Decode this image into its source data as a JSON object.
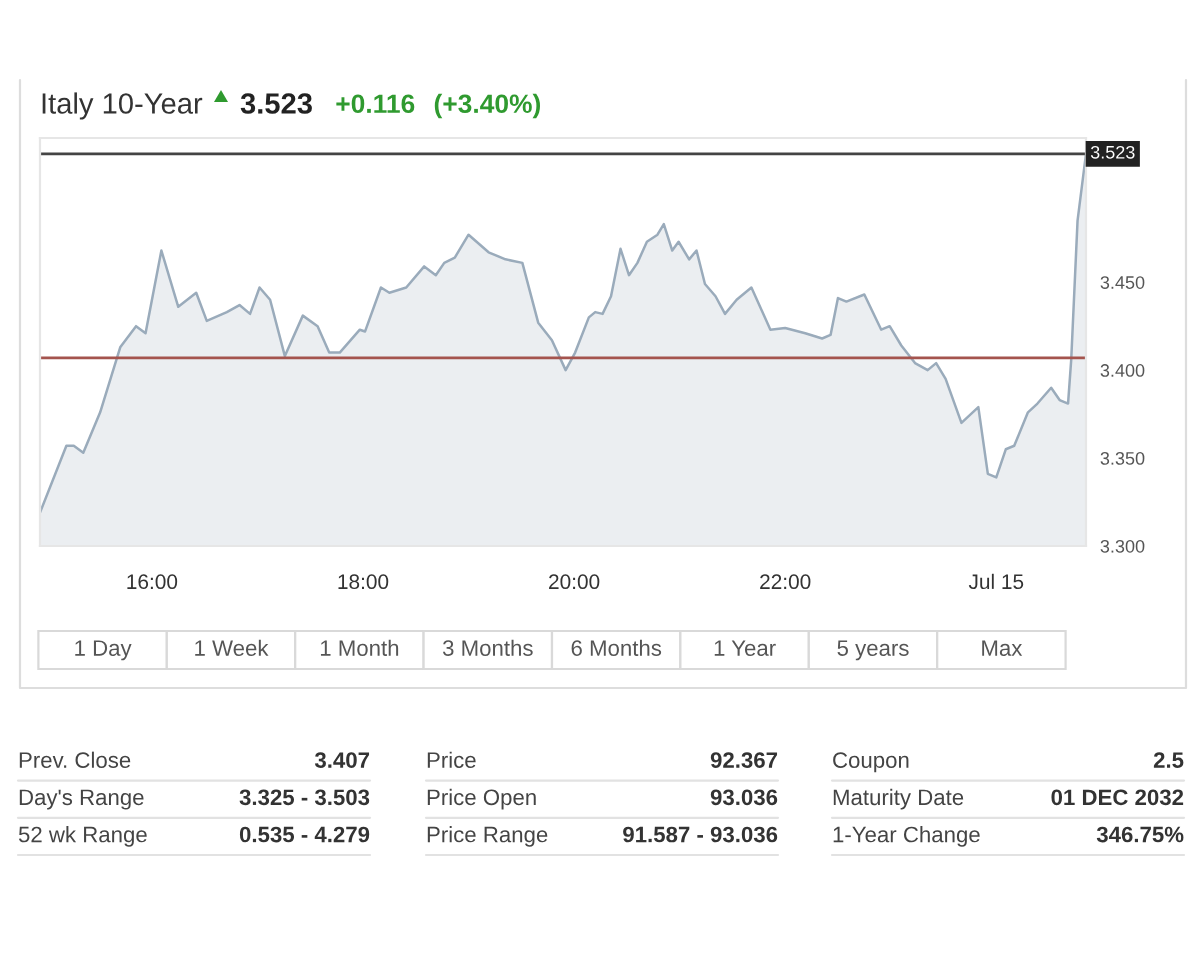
{
  "chart_data": {
    "type": "area",
    "title": "Italy 10-Year",
    "annotations": [
      "3.523",
      "+0.116",
      "(+3.40%)",
      "1 Day",
      "1 Week",
      "1 Month",
      "3 Months",
      "6 Months",
      "1 Year",
      "5 years",
      "Max",
      "Prev. Close",
      "3.407",
      "Price",
      "92.367",
      "Coupon",
      "2.5",
      "Day's Range",
      "3.325 - 3.503",
      "Price Open",
      "93.036",
      "Maturity Date",
      "01 DEC 2032",
      "52 wk Range",
      "0.535 - 4.279",
      "Price Range",
      "91.587 - 93.036",
      "1-Year Change",
      "346.75%"
    ],
    "x": [
      14.94,
      15.19,
      15.26,
      15.35,
      15.51,
      15.7,
      15.85,
      15.94,
      16.09,
      16.25,
      16.42,
      16.52,
      16.71,
      16.83,
      16.93,
      17.02,
      17.12,
      17.26,
      17.43,
      17.57,
      17.68,
      17.78,
      17.97,
      18.02,
      18.17,
      18.25,
      18.41,
      18.58,
      18.69,
      18.77,
      18.87,
      19.0,
      19.19,
      19.35,
      19.51,
      19.66,
      19.79,
      19.92,
      20.01,
      20.14,
      20.2,
      20.27,
      20.35,
      20.44,
      20.52,
      20.6,
      20.69,
      20.79,
      20.85,
      20.93,
      20.99,
      21.09,
      21.16,
      21.24,
      21.34,
      21.43,
      21.54,
      21.68,
      21.86,
      22.0,
      22.19,
      22.35,
      22.43,
      22.5,
      22.58,
      22.75,
      22.91,
      22.99,
      23.1,
      23.23,
      23.35,
      23.43,
      23.52,
      23.67,
      23.83,
      23.92,
      24.0,
      24.09,
      24.17,
      24.3,
      24.39,
      24.52,
      24.6,
      24.68,
      24.71,
      24.77,
      24.85
    ],
    "series": [
      {
        "color": "#9aabbb",
        "values": [
          3.319,
          3.357,
          3.357,
          3.353,
          3.376,
          3.413,
          3.425,
          3.421,
          3.468,
          3.436,
          3.444,
          3.428,
          3.433,
          3.437,
          3.432,
          3.447,
          3.44,
          3.408,
          3.431,
          3.425,
          3.41,
          3.41,
          3.423,
          3.422,
          3.447,
          3.444,
          3.447,
          3.459,
          3.454,
          3.461,
          3.464,
          3.477,
          3.467,
          3.463,
          3.461,
          3.427,
          3.417,
          3.4,
          3.41,
          3.43,
          3.433,
          3.432,
          3.442,
          3.469,
          3.454,
          3.461,
          3.473,
          3.477,
          3.483,
          3.468,
          3.473,
          3.463,
          3.468,
          3.449,
          3.442,
          3.432,
          3.44,
          3.447,
          3.423,
          3.424,
          3.421,
          3.418,
          3.42,
          3.441,
          3.439,
          3.443,
          3.423,
          3.425,
          3.414,
          3.404,
          3.4,
          3.404,
          3.395,
          3.37,
          3.379,
          3.341,
          3.339,
          3.355,
          3.357,
          3.376,
          3.381,
          3.39,
          3.383,
          3.381,
          3.406,
          3.485,
          3.523
        ]
      }
    ],
    "xlim": [
      14.94,
      24.85
    ],
    "ylim": [
      3.3,
      3.532
    ],
    "xticks": [
      {
        "value": 16,
        "label": "16:00"
      },
      {
        "value": 18,
        "label": "18:00"
      },
      {
        "value": 20,
        "label": "20:00"
      },
      {
        "value": 22,
        "label": "22:00"
      },
      {
        "value": 24,
        "label": "Jul 15"
      }
    ],
    "yticks": [
      {
        "value": 3.3,
        "label": "3.300"
      },
      {
        "value": 3.35,
        "label": "3.350"
      },
      {
        "value": 3.4,
        "label": "3.400"
      },
      {
        "value": 3.45,
        "label": "3.450"
      }
    ],
    "ref_lines": [
      {
        "axis": "y",
        "value": 3.523,
        "label": "3.523",
        "color": "#444444"
      },
      {
        "axis": "y",
        "value": 3.407,
        "color": "#a4544e"
      }
    ]
  }
}
